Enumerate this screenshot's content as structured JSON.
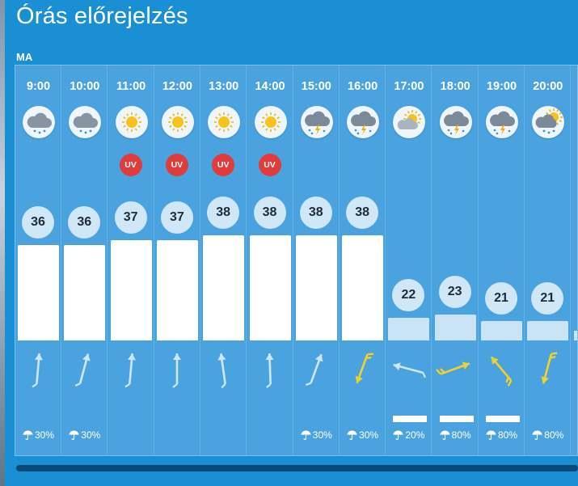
{
  "header": {
    "title": "Órás előrejelzés",
    "day_label": "MA"
  },
  "colors": {
    "wind_light": "#cfe6f7",
    "wind_strong": "#f1d12a",
    "uv": "#e03c3c"
  },
  "hours": [
    {
      "time": "9:00",
      "icon": "rain-icon",
      "uv": "",
      "temp": "36",
      "wind_deg": -175,
      "wind_strong": false,
      "precip": "30%",
      "precip_bar": false
    },
    {
      "time": "10:00",
      "icon": "rain-icon",
      "uv": "",
      "temp": "36",
      "wind_deg": -165,
      "wind_strong": false,
      "precip": "30%",
      "precip_bar": false
    },
    {
      "time": "11:00",
      "icon": "sun-icon",
      "uv": "UV",
      "temp": "37",
      "wind_deg": -175,
      "wind_strong": false,
      "precip": "",
      "precip_bar": false
    },
    {
      "time": "12:00",
      "icon": "sun-icon",
      "uv": "UV",
      "temp": "37",
      "wind_deg": 180,
      "wind_strong": false,
      "precip": "",
      "precip_bar": false
    },
    {
      "time": "13:00",
      "icon": "sun-icon",
      "uv": "UV",
      "temp": "38",
      "wind_deg": 172,
      "wind_strong": false,
      "precip": "",
      "precip_bar": false
    },
    {
      "time": "14:00",
      "icon": "sun-icon",
      "uv": "UV",
      "temp": "38",
      "wind_deg": 178,
      "wind_strong": false,
      "precip": "",
      "precip_bar": false
    },
    {
      "time": "15:00",
      "icon": "thunder-icon",
      "uv": "",
      "temp": "38",
      "wind_deg": -160,
      "wind_strong": false,
      "precip": "30%",
      "precip_bar": false
    },
    {
      "time": "16:00",
      "icon": "thunder-icon",
      "uv": "",
      "temp": "38",
      "wind_deg": 20,
      "wind_strong": true,
      "precip": "30%",
      "precip_bar": false
    },
    {
      "time": "17:00",
      "icon": "partly-cloudy-icon",
      "uv": "",
      "temp": "22",
      "wind_deg": 105,
      "wind_strong": false,
      "precip": "20%",
      "precip_bar": true
    },
    {
      "time": "18:00",
      "icon": "thunder-icon",
      "uv": "",
      "temp": "23",
      "wind_deg": -110,
      "wind_strong": true,
      "precip": "80%",
      "precip_bar": true
    },
    {
      "time": "19:00",
      "icon": "thunder-icon",
      "uv": "",
      "temp": "21",
      "wind_deg": 140,
      "wind_strong": true,
      "precip": "80%",
      "precip_bar": true
    },
    {
      "time": "20:00",
      "icon": "sun-thunder-icon",
      "uv": "",
      "temp": "21",
      "wind_deg": 15,
      "wind_strong": true,
      "precip": "80%",
      "precip_bar": false
    }
  ]
}
